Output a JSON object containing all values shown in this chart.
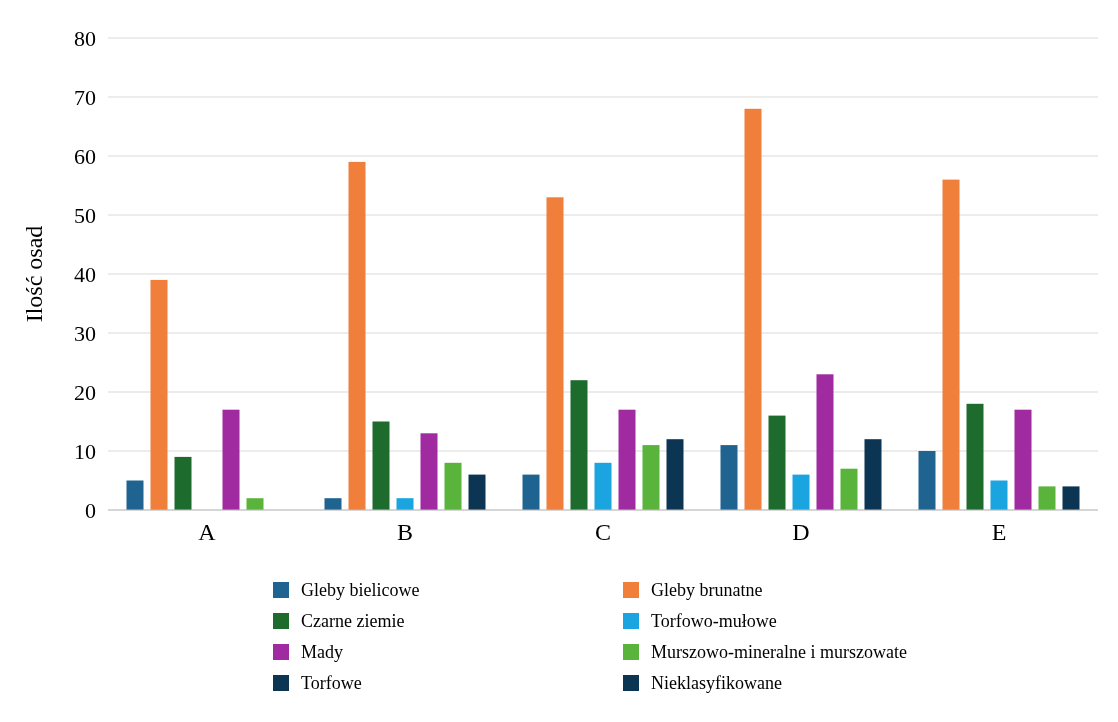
{
  "chart_data": {
    "type": "bar",
    "ylabel": "Ilość osad",
    "categories": [
      "A",
      "B",
      "C",
      "D",
      "E"
    ],
    "series": [
      {
        "name": "Gleby bielicowe",
        "color": "#1f6391",
        "values": [
          5,
          2,
          6,
          11,
          10
        ]
      },
      {
        "name": "Gleby brunatne",
        "color": "#f07f3c",
        "values": [
          39,
          59,
          53,
          68,
          56
        ]
      },
      {
        "name": "Czarne ziemie",
        "color": "#1e6b2e",
        "values": [
          9,
          15,
          22,
          16,
          18
        ]
      },
      {
        "name": "Torfowo-mułowe",
        "color": "#1aa5e0",
        "values": [
          0,
          2,
          8,
          6,
          5
        ]
      },
      {
        "name": "Mady",
        "color": "#a02aa0",
        "values": [
          17,
          13,
          17,
          23,
          17
        ]
      },
      {
        "name": "Murszowo-mineralne i murszowate",
        "color": "#5ab43c",
        "values": [
          2,
          8,
          11,
          7,
          4
        ]
      },
      {
        "name": "Torfowe",
        "color": "#0b3553",
        "values": [
          null,
          null,
          null,
          null,
          null
        ]
      },
      {
        "name": "Nieklasyfikowane",
        "color": "#0b3553",
        "values": [
          0,
          6,
          12,
          12,
          4
        ]
      }
    ],
    "ylim": [
      0,
      80
    ],
    "yticks": [
      0,
      10,
      20,
      30,
      40,
      50,
      60,
      70,
      80
    ],
    "grid": "y",
    "legend": "bottom"
  }
}
